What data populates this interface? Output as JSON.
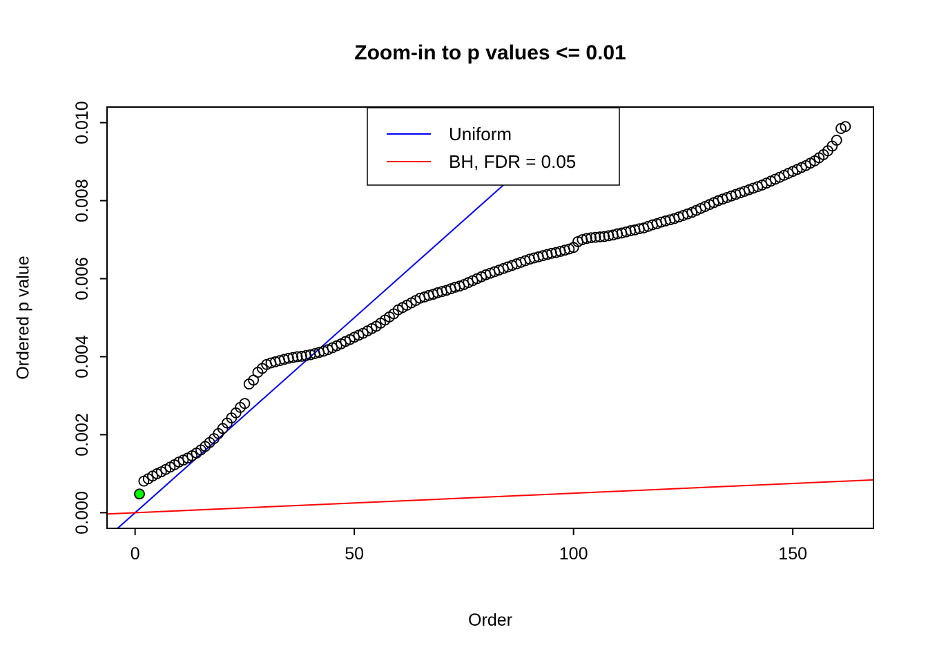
{
  "chart_data": {
    "type": "scatter",
    "title": "Zoom-in to p values <= 0.01",
    "xlabel": "Order",
    "ylabel": "Ordered p value",
    "xlim": [
      -6.4,
      168.4
    ],
    "ylim": [
      -0.0004,
      0.0104
    ],
    "x_ticks": [
      0,
      50,
      100,
      150
    ],
    "x_tick_labels": [
      "0",
      "50",
      "100",
      "150"
    ],
    "y_ticks": [
      0,
      0.002,
      0.004,
      0.006,
      0.008,
      0.01
    ],
    "y_tick_labels": [
      "0.000",
      "0.002",
      "0.004",
      "0.006",
      "0.008",
      "0.010"
    ],
    "grid": false,
    "series": [
      {
        "name": "ordered-p-values",
        "marker": "open-circle",
        "color": "#000000",
        "x_start": 1,
        "values": [
          0.00048,
          0.00081,
          0.00087,
          0.00094,
          0.001,
          0.00105,
          0.00111,
          0.00117,
          0.00123,
          0.0013,
          0.00135,
          0.0014,
          0.00146,
          0.00153,
          0.00161,
          0.0017,
          0.0018,
          0.0019,
          0.00203,
          0.00216,
          0.0023,
          0.00243,
          0.00256,
          0.0027,
          0.0028,
          0.0033,
          0.0034,
          0.0036,
          0.0037,
          0.0038,
          0.00384,
          0.00387,
          0.0039,
          0.00393,
          0.00396,
          0.00398,
          0.004,
          0.00401,
          0.00403,
          0.00405,
          0.00408,
          0.00411,
          0.00414,
          0.00418,
          0.00423,
          0.00428,
          0.00433,
          0.00439,
          0.00444,
          0.0045,
          0.00455,
          0.0046,
          0.00466,
          0.00472,
          0.00478,
          0.00486,
          0.00494,
          0.00502,
          0.0051,
          0.0052,
          0.00526,
          0.00532,
          0.00538,
          0.00544,
          0.0055,
          0.00553,
          0.00557,
          0.0056,
          0.00564,
          0.00567,
          0.0057,
          0.00574,
          0.00578,
          0.00581,
          0.00585,
          0.0059,
          0.00595,
          0.006,
          0.00605,
          0.0061,
          0.00614,
          0.00618,
          0.00622,
          0.00626,
          0.0063,
          0.00634,
          0.00638,
          0.00642,
          0.00646,
          0.0065,
          0.00653,
          0.00656,
          0.00659,
          0.00662,
          0.00665,
          0.00667,
          0.0067,
          0.00673,
          0.00676,
          0.0068,
          0.00695,
          0.007,
          0.00703,
          0.00705,
          0.00706,
          0.00707,
          0.00708,
          0.0071,
          0.00712,
          0.00715,
          0.00717,
          0.0072,
          0.00723,
          0.00725,
          0.00728,
          0.0073,
          0.00734,
          0.00738,
          0.00741,
          0.00745,
          0.00748,
          0.00751,
          0.00754,
          0.00758,
          0.00762,
          0.00766,
          0.0077,
          0.00775,
          0.0078,
          0.00785,
          0.0079,
          0.00795,
          0.008,
          0.00804,
          0.00808,
          0.00812,
          0.00816,
          0.0082,
          0.00824,
          0.00828,
          0.00832,
          0.00836,
          0.0084,
          0.00845,
          0.0085,
          0.00855,
          0.0086,
          0.00865,
          0.0087,
          0.00875,
          0.0088,
          0.00885,
          0.0089,
          0.00896,
          0.00902,
          0.0091,
          0.00918,
          0.00928,
          0.0094,
          0.00955,
          0.00985,
          0.0099
        ]
      }
    ],
    "highlight_point": {
      "order": 1,
      "value": 0.00048,
      "color": "#00ff00"
    },
    "lines": [
      {
        "key": "uniform-line",
        "label": "Uniform",
        "color": "#0000ff",
        "intercept": 0,
        "slope": 0.0001
      },
      {
        "key": "bh-line",
        "label": "BH, FDR = 0.05",
        "color": "#ff0000",
        "intercept": 0,
        "slope": 5e-06
      }
    ],
    "legend": {
      "position": "top",
      "entries": [
        {
          "key": "uniform",
          "label": "Uniform",
          "color": "#0000ff"
        },
        {
          "key": "bh",
          "label": "BH, FDR = 0.05",
          "color": "#ff0000"
        }
      ]
    }
  }
}
